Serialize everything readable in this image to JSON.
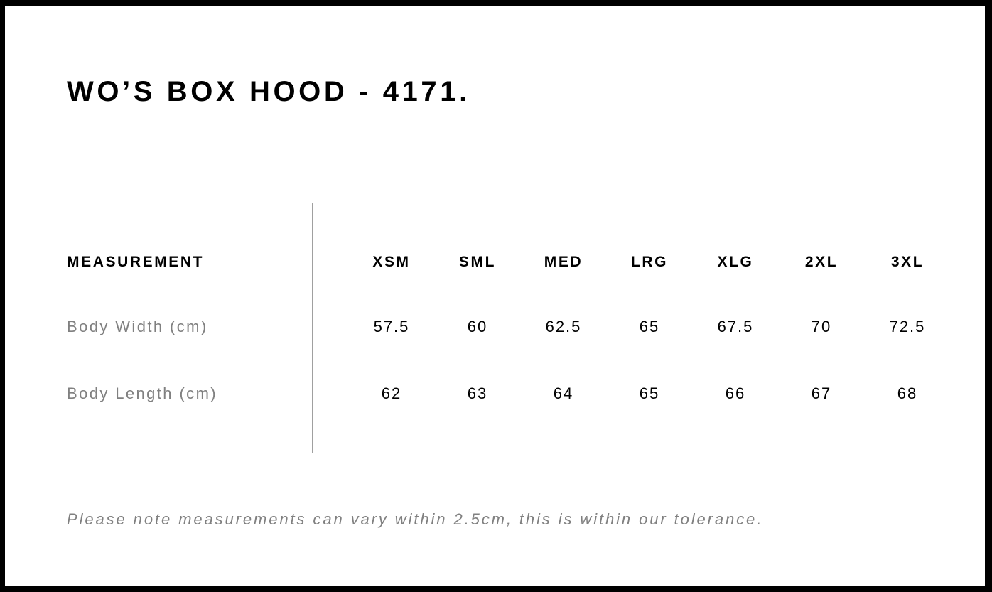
{
  "title": "WO’S BOX HOOD - 4171.",
  "table": {
    "header_label": "MEASUREMENT",
    "sizes": [
      "XSM",
      "SML",
      "MED",
      "LRG",
      "XLG",
      "2XL",
      "3XL"
    ],
    "rows": [
      {
        "label": "Body Width (cm)",
        "values": [
          "57.5",
          "60",
          "62.5",
          "65",
          "67.5",
          "70",
          "72.5"
        ]
      },
      {
        "label": "Body Length (cm)",
        "values": [
          "62",
          "63",
          "64",
          "65",
          "66",
          "67",
          "68"
        ]
      }
    ]
  },
  "note": "Please note measurements can vary within 2.5cm, this is within our tolerance."
}
